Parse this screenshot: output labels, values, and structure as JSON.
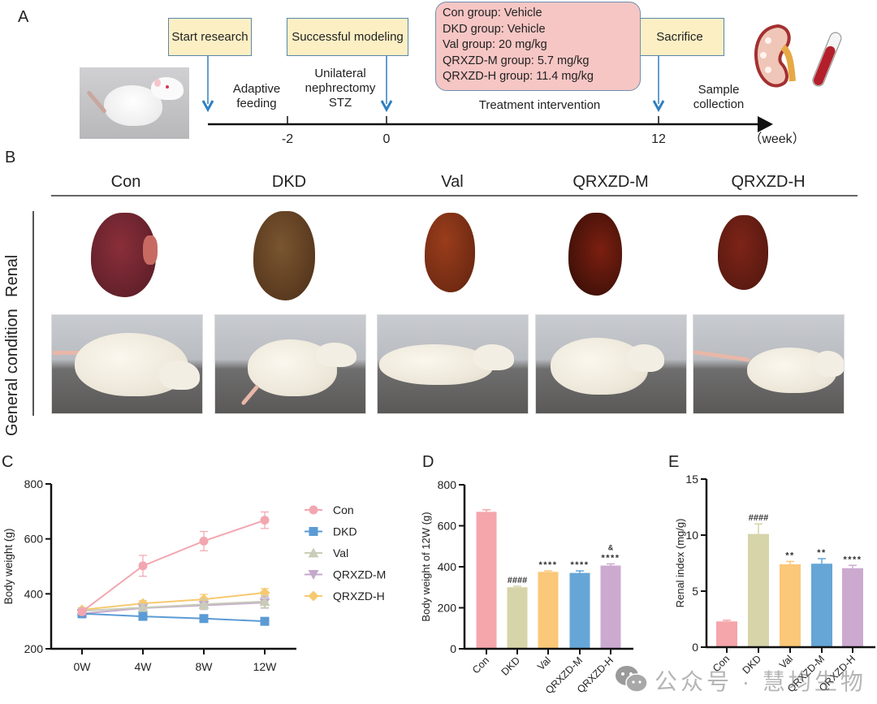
{
  "panels": {
    "a": "A",
    "b": "B",
    "c": "C",
    "d": "D",
    "e": "E"
  },
  "timeline": {
    "boxes": {
      "start": "Start research",
      "modeling": "Successful modeling",
      "sacrifice": "Sacrifice"
    },
    "groups": [
      "Con group: Vehicle",
      "DKD group: Vehicle",
      "Val group: 20 mg/kg",
      "QRXZD-M group: 5.7 mg/kg",
      "QRXZD-H group: 11.4 mg/kg"
    ],
    "phases": {
      "adaptive": "Adaptive feeding",
      "nephrectomy": "Unilateral nephrectomy STZ",
      "treatment": "Treatment intervention",
      "sample": "Sample collection"
    },
    "ticks": [
      "-2",
      "0",
      "12"
    ],
    "unit": "（week）",
    "colors": {
      "box_fill": "#fcefc4",
      "group_fill": "#f6c6c4",
      "arrow": "#2f7fc1"
    }
  },
  "panel_b": {
    "groups": [
      "Con",
      "DKD",
      "Val",
      "QRXZD-M",
      "QRXZD-H"
    ],
    "row_labels": {
      "renal": "Renal",
      "general": "General condition"
    }
  },
  "watermark": "公众号 · 慧均生物",
  "chart_data": [
    {
      "type": "line",
      "panel": "C",
      "title": "",
      "xlabel": "",
      "ylabel": "Body weight (g)",
      "categories": [
        "0W",
        "4W",
        "8W",
        "12W"
      ],
      "ylim": [
        200,
        800
      ],
      "yticks": [
        200,
        400,
        600,
        800
      ],
      "legend_position": "right",
      "series": [
        {
          "name": "Con",
          "color": "#f2a7b0",
          "marker": "circle",
          "values": [
            335,
            502,
            592,
            668
          ],
          "errors": [
            10,
            38,
            35,
            30
          ]
        },
        {
          "name": "DKD",
          "color": "#5b9bd5",
          "marker": "square",
          "values": [
            328,
            318,
            310,
            300
          ],
          "errors": [
            15,
            12,
            8,
            12
          ]
        },
        {
          "name": "Val",
          "color": "#c9ccb8",
          "marker": "triangle-up",
          "values": [
            338,
            350,
            362,
            372
          ],
          "errors": [
            10,
            12,
            18,
            22
          ]
        },
        {
          "name": "QRXZD-M",
          "color": "#c4a9cc",
          "marker": "triangle-down",
          "values": [
            328,
            348,
            358,
            368
          ],
          "errors": [
            10,
            12,
            15,
            20
          ]
        },
        {
          "name": "QRXZD-H",
          "color": "#f7c96e",
          "marker": "diamond",
          "values": [
            342,
            365,
            380,
            404
          ],
          "errors": [
            8,
            10,
            18,
            15
          ]
        }
      ]
    },
    {
      "type": "bar",
      "panel": "D",
      "title": "",
      "xlabel": "",
      "ylabel": "Body weight of 12W (g)",
      "categories": [
        "Con",
        "DKD",
        "Val",
        "QRXZD-M",
        "QRXZD-H"
      ],
      "values": [
        668,
        300,
        375,
        370,
        406
      ],
      "errors": [
        10,
        5,
        5,
        10,
        8
      ],
      "colors": [
        "#f4a6ab",
        "#d6d4a9",
        "#fbc778",
        "#66a6d6",
        "#ccaad0"
      ],
      "annotations": [
        "",
        "####",
        "****",
        "****",
        "&\n****"
      ],
      "ylim": [
        0,
        800
      ],
      "yticks": [
        0,
        200,
        400,
        600,
        800
      ]
    },
    {
      "type": "bar",
      "panel": "E",
      "title": "",
      "xlabel": "",
      "ylabel": "Renal index (mg/g)",
      "categories": [
        "Con",
        "DKD",
        "Val",
        "QRXZD-M",
        "QRXZD-H"
      ],
      "values": [
        2.3,
        10.1,
        7.4,
        7.45,
        7.05
      ],
      "errors": [
        0.1,
        0.9,
        0.25,
        0.45,
        0.25
      ],
      "colors": [
        "#f4a6ab",
        "#d6d4a9",
        "#fbc778",
        "#66a6d6",
        "#ccaad0"
      ],
      "annotations": [
        "",
        "####",
        "**",
        "**",
        "****"
      ],
      "ylim": [
        0,
        15
      ],
      "yticks": [
        0,
        5,
        10,
        15
      ]
    }
  ]
}
